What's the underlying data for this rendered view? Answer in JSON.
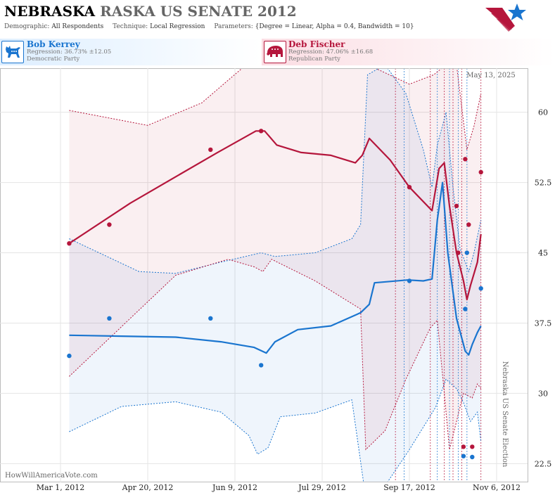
{
  "title": {
    "state": "NEBRASKA",
    "rest": "RASKA US SENATE 2012"
  },
  "params": {
    "demographic_label": "Demographic:",
    "demographic": "All Respondents",
    "technique_label": "Technique:",
    "technique": "Local Regression",
    "parameters_label": "Parameters:",
    "parameters": "{Degree = Linear, Alpha = 0.4, Bandwidth = 10}"
  },
  "candidates": [
    {
      "name": "Bob Kerrey",
      "regression": "Regression: 36.73% ±12.05",
      "party": "Democratic Party",
      "color": "#1a75cf",
      "icon": "donkey-icon"
    },
    {
      "name": "Deb Fischer",
      "regression": "Regression: 47.06% ±16.68",
      "party": "Republican Party",
      "color": "#b5163c",
      "icon": "elephant-icon"
    }
  ],
  "date_stamp": "May 13, 2025",
  "side_label": "Nebraska US Senate Election",
  "source": "HowWillAmericaVote.com",
  "logo_icon": "star-flag-icon",
  "chart_data": {
    "type": "line",
    "x_axis": {
      "type": "date",
      "ticks": [
        "Mar 1, 2012",
        "Apr 20, 2012",
        "Jun 9, 2012",
        "Jul 29, 2012",
        "Sep 17, 2012",
        "Nov 6, 2012"
      ]
    },
    "y_axis": {
      "ticks": [
        "22.5",
        "30",
        "37.5",
        "45",
        "52.5",
        "60"
      ],
      "ylim": [
        20.5,
        64.7
      ]
    },
    "grid": true,
    "poll_dates": [
      "2012-09-09",
      "2012-09-14",
      "2012-09-29",
      "2012-10-03",
      "2012-10-07",
      "2012-10-10",
      "2012-10-12",
      "2012-10-15",
      "2012-10-17",
      "2012-10-20",
      "2012-10-28"
    ],
    "series": [
      {
        "name": "Bob Kerrey",
        "color": "#1a75cf",
        "points": [
          [
            "2012-03-06",
            34.0
          ],
          [
            "2012-03-29",
            38.0
          ],
          [
            "2012-05-26",
            38.0
          ],
          [
            "2012-06-24",
            33.0
          ],
          [
            "2012-09-17",
            42.0
          ],
          [
            "2012-10-18",
            23.3
          ],
          [
            "2012-10-19",
            39.0
          ],
          [
            "2012-10-20",
            45.0
          ],
          [
            "2012-10-23",
            23.2
          ],
          [
            "2012-10-28",
            41.2
          ]
        ],
        "trend": [
          [
            "2012-03-06",
            36.2
          ],
          [
            "2012-04-05",
            36.1
          ],
          [
            "2012-05-06",
            36.0
          ],
          [
            "2012-06-01",
            35.5
          ],
          [
            "2012-06-20",
            34.9
          ],
          [
            "2012-06-27",
            34.3
          ],
          [
            "2012-07-02",
            35.5
          ],
          [
            "2012-07-15",
            36.8
          ],
          [
            "2012-08-03",
            37.2
          ],
          [
            "2012-08-20",
            38.6
          ],
          [
            "2012-08-25",
            39.5
          ],
          [
            "2012-08-28",
            41.8
          ],
          [
            "2012-09-16",
            42.1
          ],
          [
            "2012-09-25",
            42.0
          ],
          [
            "2012-09-30",
            42.2
          ],
          [
            "2012-10-03",
            48.5
          ],
          [
            "2012-10-06",
            52.5
          ],
          [
            "2012-10-09",
            45.0
          ],
          [
            "2012-10-14",
            38.0
          ],
          [
            "2012-10-19",
            34.5
          ],
          [
            "2012-10-21",
            34.1
          ],
          [
            "2012-10-23",
            35.2
          ],
          [
            "2012-10-26",
            36.5
          ],
          [
            "2012-10-28",
            37.2
          ]
        ],
        "upper": [
          [
            "2012-03-06",
            46.5
          ],
          [
            "2012-04-15",
            43.0
          ],
          [
            "2012-05-06",
            42.8
          ],
          [
            "2012-06-01",
            44.0
          ],
          [
            "2012-06-24",
            45.0
          ],
          [
            "2012-07-02",
            44.6
          ],
          [
            "2012-07-25",
            45.0
          ],
          [
            "2012-08-15",
            46.5
          ],
          [
            "2012-08-20",
            48.0
          ],
          [
            "2012-08-24",
            64.0
          ],
          [
            "2012-09-03",
            67.0
          ],
          [
            "2012-09-15",
            62.0
          ],
          [
            "2012-09-25",
            56.0
          ],
          [
            "2012-09-30",
            52.0
          ],
          [
            "2012-10-03",
            56.5
          ],
          [
            "2012-10-08",
            60.0
          ],
          [
            "2012-10-12",
            52.0
          ],
          [
            "2012-10-16",
            45.5
          ],
          [
            "2012-10-21",
            43.0
          ],
          [
            "2012-10-24",
            45.0
          ],
          [
            "2012-10-28",
            48.5
          ]
        ],
        "lower": [
          [
            "2012-03-06",
            25.9
          ],
          [
            "2012-04-05",
            28.6
          ],
          [
            "2012-05-06",
            29.1
          ],
          [
            "2012-06-01",
            28.0
          ],
          [
            "2012-06-17",
            25.5
          ],
          [
            "2012-06-22",
            23.5
          ],
          [
            "2012-06-28",
            24.2
          ],
          [
            "2012-07-05",
            27.5
          ],
          [
            "2012-07-25",
            27.9
          ],
          [
            "2012-08-15",
            29.3
          ],
          [
            "2012-08-22",
            14.0
          ],
          [
            "2012-09-03",
            18.0
          ],
          [
            "2012-09-17",
            24.0
          ],
          [
            "2012-10-02",
            28.5
          ],
          [
            "2012-10-08",
            31.5
          ],
          [
            "2012-10-14",
            30.5
          ],
          [
            "2012-10-18",
            29.0
          ],
          [
            "2012-10-22",
            27.0
          ],
          [
            "2012-10-26",
            28.0
          ],
          [
            "2012-10-28",
            24.8
          ]
        ]
      },
      {
        "name": "Deb Fischer",
        "color": "#b5163c",
        "points": [
          [
            "2012-03-06",
            46.0
          ],
          [
            "2012-03-29",
            48.0
          ],
          [
            "2012-05-26",
            56.0
          ],
          [
            "2012-06-24",
            58.0
          ],
          [
            "2012-09-17",
            52.0
          ],
          [
            "2012-10-14",
            50.0
          ],
          [
            "2012-10-15",
            45.0
          ],
          [
            "2012-10-18",
            24.3
          ],
          [
            "2012-10-19",
            55.0
          ],
          [
            "2012-10-21",
            48.0
          ],
          [
            "2012-10-23",
            24.3
          ],
          [
            "2012-10-28",
            53.6
          ]
        ],
        "trend": [
          [
            "2012-03-06",
            46.0
          ],
          [
            "2012-04-10",
            50.3
          ],
          [
            "2012-05-30",
            55.7
          ],
          [
            "2012-06-21",
            58.0
          ],
          [
            "2012-06-26",
            58.0
          ],
          [
            "2012-07-03",
            56.5
          ],
          [
            "2012-07-17",
            55.7
          ],
          [
            "2012-08-03",
            55.4
          ],
          [
            "2012-08-17",
            54.6
          ],
          [
            "2012-08-21",
            55.4
          ],
          [
            "2012-08-25",
            57.2
          ],
          [
            "2012-09-06",
            54.9
          ],
          [
            "2012-09-17",
            52.0
          ],
          [
            "2012-09-30",
            49.5
          ],
          [
            "2012-10-04",
            54.0
          ],
          [
            "2012-10-07",
            54.6
          ],
          [
            "2012-10-10",
            50.0
          ],
          [
            "2012-10-14",
            45.0
          ],
          [
            "2012-10-18",
            42.0
          ],
          [
            "2012-10-20",
            40.0
          ],
          [
            "2012-10-22",
            41.5
          ],
          [
            "2012-10-26",
            44.0
          ],
          [
            "2012-10-28",
            47.0
          ]
        ],
        "upper": [
          [
            "2012-03-06",
            60.2
          ],
          [
            "2012-04-20",
            58.6
          ],
          [
            "2012-05-21",
            61.0
          ],
          [
            "2012-06-15",
            65.0
          ],
          [
            "2012-07-25",
            67.0
          ],
          [
            "2012-08-25",
            65.0
          ],
          [
            "2012-09-17",
            63.0
          ],
          [
            "2012-10-01",
            64.0
          ],
          [
            "2012-10-08",
            69.0
          ],
          [
            "2012-10-14",
            67.0
          ],
          [
            "2012-10-20",
            56.0
          ],
          [
            "2012-10-24",
            58.5
          ],
          [
            "2012-10-28",
            62.0
          ]
        ],
        "lower": [
          [
            "2012-03-06",
            31.8
          ],
          [
            "2012-04-10",
            38.0
          ],
          [
            "2012-05-06",
            42.6
          ],
          [
            "2012-06-05",
            44.3
          ],
          [
            "2012-06-20",
            43.5
          ],
          [
            "2012-06-25",
            43.0
          ],
          [
            "2012-06-30",
            44.3
          ],
          [
            "2012-07-25",
            42.0
          ],
          [
            "2012-08-20",
            39.0
          ],
          [
            "2012-08-23",
            24.0
          ],
          [
            "2012-09-03",
            26.0
          ],
          [
            "2012-09-15",
            31.5
          ],
          [
            "2012-09-29",
            37.0
          ],
          [
            "2012-10-03",
            37.8
          ],
          [
            "2012-10-07",
            30.0
          ],
          [
            "2012-10-10",
            24.0
          ],
          [
            "2012-10-14",
            27.0
          ],
          [
            "2012-10-18",
            30.0
          ],
          [
            "2012-10-23",
            29.5
          ],
          [
            "2012-10-26",
            31.0
          ],
          [
            "2012-10-28",
            30.5
          ]
        ]
      }
    ]
  }
}
